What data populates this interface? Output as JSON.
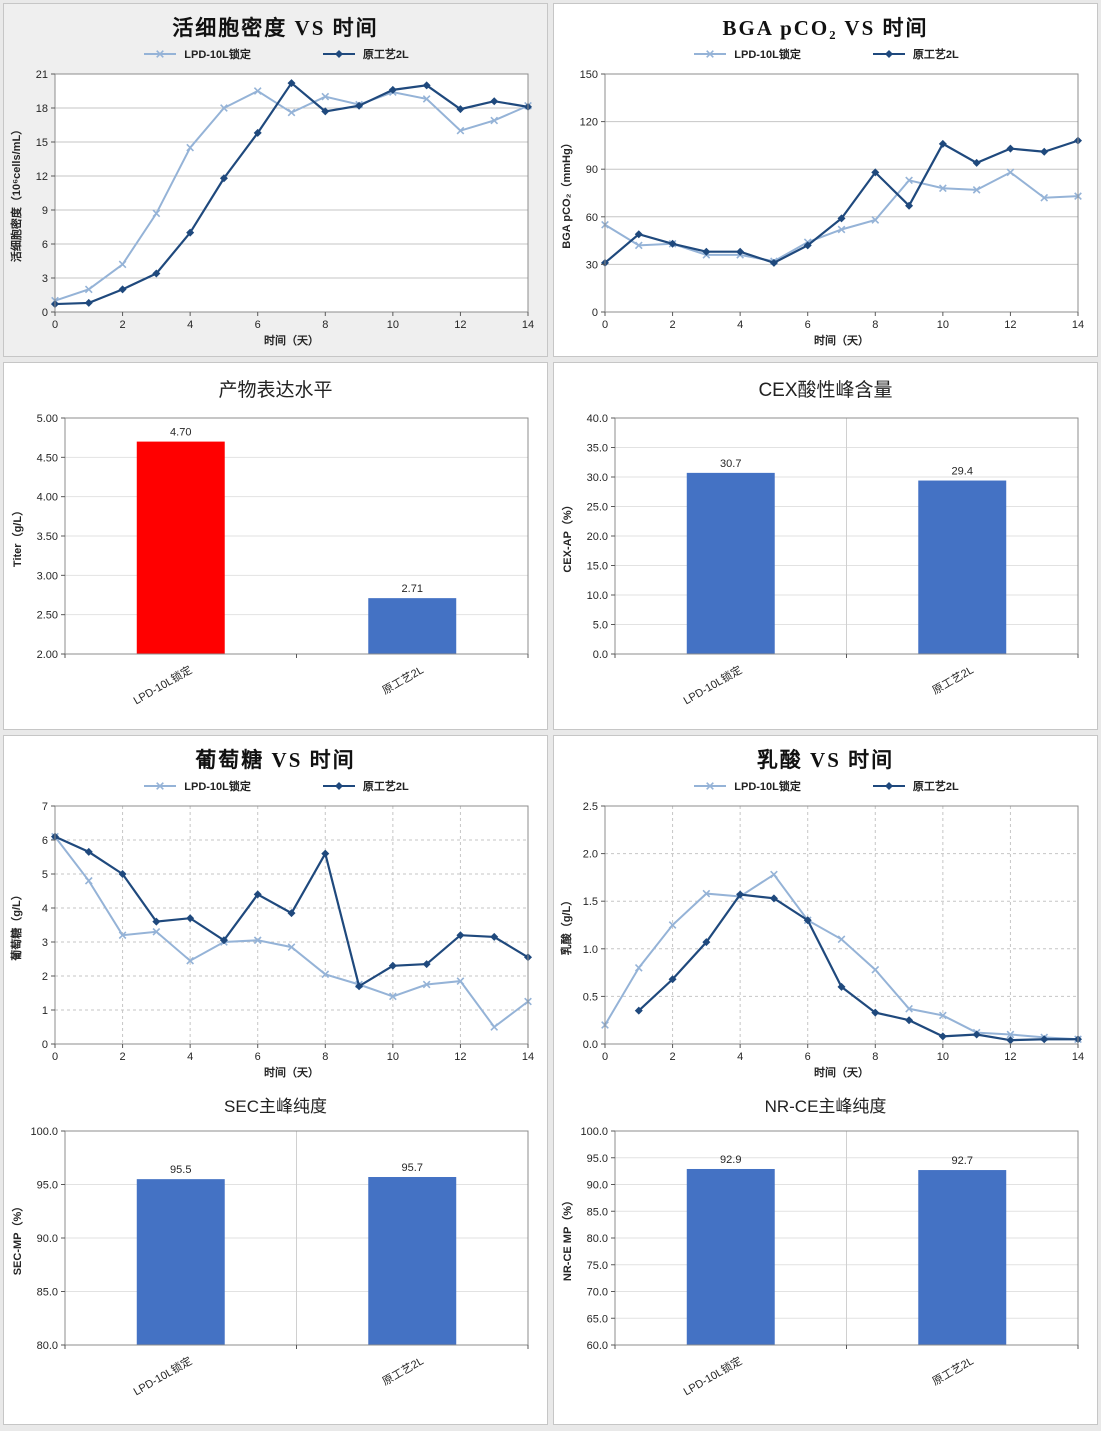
{
  "chart_data": [
    {
      "id": "vcd",
      "type": "line",
      "title": "活细胞密度 VS 时间",
      "xlabel": "时间（天）",
      "ylabel": "活细胞密度（10⁶cells/mL）",
      "xlim": [
        0,
        14
      ],
      "ylim": [
        0,
        21
      ],
      "xticks": [
        0,
        2,
        4,
        6,
        8,
        10,
        12,
        14
      ],
      "xtick_labels": [
        "0",
        "2",
        "4",
        "6",
        "8",
        "10",
        "12",
        "14"
      ],
      "yticks": [
        0,
        3,
        6,
        9,
        12,
        15,
        18,
        21
      ],
      "ytick_labels": [
        "0",
        "3",
        "6",
        "9",
        "12",
        "15",
        "18",
        "21"
      ],
      "grid": {
        "h": true,
        "v": false,
        "dash": false
      },
      "x": [
        0,
        1,
        2,
        3,
        4,
        5,
        6,
        7,
        8,
        9,
        10,
        11,
        12,
        13,
        14
      ],
      "series": [
        {
          "name": "LPD-10L锁定",
          "color": "#95b3d7",
          "marker": "x",
          "width": 2,
          "values": [
            1.0,
            2.0,
            4.2,
            8.7,
            14.5,
            18.0,
            19.5,
            17.6,
            19.0,
            18.3,
            19.4,
            18.8,
            16.0,
            16.9,
            18.2
          ]
        },
        {
          "name": "原工艺2L",
          "color": "#1f497d",
          "marker": "diamond",
          "width": 2.2,
          "values": [
            0.7,
            0.8,
            2.0,
            3.4,
            7.0,
            11.8,
            15.8,
            20.2,
            17.7,
            18.2,
            19.6,
            20.0,
            17.9,
            18.6,
            18.1
          ]
        }
      ]
    },
    {
      "id": "bga",
      "type": "line",
      "title": "BGA pCO₂ VS 时间",
      "xlabel": "时间（天）",
      "ylabel": "BGA pCO₂（mmHg）",
      "xlim": [
        0,
        14
      ],
      "ylim": [
        0,
        150
      ],
      "xticks": [
        0,
        2,
        4,
        6,
        8,
        10,
        12,
        14
      ],
      "xtick_labels": [
        "0",
        "2",
        "4",
        "6",
        "8",
        "10",
        "12",
        "14"
      ],
      "yticks": [
        0,
        30,
        60,
        90,
        120,
        150
      ],
      "ytick_labels": [
        "0",
        "30",
        "60",
        "90",
        "120",
        "150"
      ],
      "grid": {
        "h": true,
        "v": false,
        "dash": false
      },
      "x": [
        0,
        1,
        2,
        3,
        4,
        5,
        6,
        7,
        8,
        9,
        10,
        11,
        12,
        13,
        14
      ],
      "series": [
        {
          "name": "LPD-10L锁定",
          "color": "#95b3d7",
          "marker": "x",
          "width": 2,
          "values": [
            55,
            42,
            43,
            36,
            36,
            32,
            44,
            52,
            58,
            83,
            78,
            77,
            88,
            72,
            73
          ]
        },
        {
          "name": "原工艺2L",
          "color": "#1f497d",
          "marker": "diamond",
          "width": 2.2,
          "values": [
            31,
            49,
            43,
            38,
            38,
            31,
            42,
            59,
            88,
            67,
            106,
            94,
            103,
            101,
            108
          ]
        }
      ]
    },
    {
      "id": "titer",
      "type": "bar",
      "title": "产物表达水平",
      "ylabel": "Titer（g/L）",
      "ylim": [
        2.0,
        5.0
      ],
      "yticks": [
        2.0,
        2.5,
        3.0,
        3.5,
        4.0,
        4.5,
        5.0
      ],
      "ytick_labels": [
        "2.00",
        "2.50",
        "3.00",
        "3.50",
        "4.00",
        "4.50",
        "5.00"
      ],
      "categories": [
        "LPD-10L锁定",
        "原工艺2L"
      ],
      "values": [
        4.7,
        2.71
      ],
      "value_labels": [
        "4.70",
        "2.71"
      ],
      "bar_colors": [
        "#ff0000",
        "#4472c4"
      ],
      "center_vline": false
    },
    {
      "id": "cex",
      "type": "bar",
      "title": "CEX酸性峰含量",
      "ylabel": "CEX-AP（%）",
      "ylim": [
        0,
        40
      ],
      "yticks": [
        0,
        5,
        10,
        15,
        20,
        25,
        30,
        35,
        40
      ],
      "ytick_labels": [
        "0.0",
        "5.0",
        "10.0",
        "15.0",
        "20.0",
        "25.0",
        "30.0",
        "35.0",
        "40.0"
      ],
      "categories": [
        "LPD-10L锁定",
        "原工艺2L"
      ],
      "values": [
        30.7,
        29.4
      ],
      "value_labels": [
        "30.7",
        "29.4"
      ],
      "bar_colors": [
        "#4472c4",
        "#4472c4"
      ],
      "center_vline": true
    },
    {
      "id": "glucose",
      "type": "line",
      "title": "葡萄糖 VS 时间",
      "xlabel": "时间（天）",
      "ylabel": "葡萄糖（g/L）",
      "xlim": [
        0,
        14
      ],
      "ylim": [
        0,
        7
      ],
      "xticks": [
        0,
        2,
        4,
        6,
        8,
        10,
        12,
        14
      ],
      "xtick_labels": [
        "0",
        "2",
        "4",
        "6",
        "8",
        "10",
        "12",
        "14"
      ],
      "yticks": [
        0,
        1,
        2,
        3,
        4,
        5,
        6,
        7
      ],
      "ytick_labels": [
        "0",
        "1",
        "2",
        "3",
        "4",
        "5",
        "6",
        "7"
      ],
      "grid": {
        "h": true,
        "v": true,
        "dash": true
      },
      "x": [
        0,
        1,
        2,
        3,
        4,
        5,
        6,
        7,
        8,
        9,
        10,
        11,
        12,
        13,
        14
      ],
      "series": [
        {
          "name": "LPD-10L锁定",
          "color": "#95b3d7",
          "marker": "x",
          "width": 2,
          "values": [
            6.1,
            4.8,
            3.2,
            3.3,
            2.45,
            3.0,
            3.05,
            2.85,
            2.05,
            1.75,
            1.4,
            1.75,
            1.85,
            0.5,
            1.25
          ]
        },
        {
          "name": "原工艺2L",
          "color": "#1f497d",
          "marker": "diamond",
          "width": 2.2,
          "values": [
            6.1,
            5.65,
            5.0,
            3.6,
            3.7,
            3.05,
            4.4,
            3.85,
            5.6,
            1.7,
            2.3,
            2.35,
            3.2,
            3.15,
            2.55
          ]
        }
      ]
    },
    {
      "id": "lactate",
      "type": "line",
      "title": "乳酸 VS 时间",
      "xlabel": "时间（天）",
      "ylabel": "乳酸（g/L）",
      "xlim": [
        0,
        14
      ],
      "ylim": [
        0,
        2.5
      ],
      "xticks": [
        0,
        2,
        4,
        6,
        8,
        10,
        12,
        14
      ],
      "xtick_labels": [
        "0",
        "2",
        "4",
        "6",
        "8",
        "10",
        "12",
        "14"
      ],
      "yticks": [
        0,
        0.5,
        1.0,
        1.5,
        2.0,
        2.5
      ],
      "ytick_labels": [
        "0.0",
        "0.5",
        "1.0",
        "1.5",
        "2.0",
        "2.5"
      ],
      "grid": {
        "h": true,
        "v": true,
        "dash": true
      },
      "x": [
        0,
        1,
        2,
        3,
        4,
        5,
        6,
        7,
        8,
        9,
        10,
        11,
        12,
        13,
        14
      ],
      "series": [
        {
          "name": "LPD-10L锁定",
          "color": "#95b3d7",
          "marker": "x",
          "width": 2,
          "values": [
            0.2,
            0.8,
            1.25,
            1.58,
            1.55,
            1.78,
            1.3,
            1.1,
            0.78,
            0.37,
            0.3,
            0.12,
            0.1,
            0.07,
            0.05
          ]
        },
        {
          "name": "原工艺2L",
          "color": "#1f497d",
          "marker": "diamond",
          "width": 2.2,
          "values": [
            null,
            0.35,
            0.68,
            1.07,
            1.57,
            1.53,
            1.3,
            0.6,
            0.33,
            0.25,
            0.08,
            0.1,
            0.04,
            0.05,
            0.05
          ]
        }
      ]
    },
    {
      "id": "sec",
      "type": "bar",
      "title": "SEC主峰纯度",
      "ylabel": "SEC-MP（%）",
      "ylim": [
        80,
        100
      ],
      "yticks": [
        80,
        85,
        90,
        95,
        100
      ],
      "ytick_labels": [
        "80.0",
        "85.0",
        "90.0",
        "95.0",
        "100.0"
      ],
      "categories": [
        "LPD-10L锁定",
        "原工艺2L"
      ],
      "values": [
        95.5,
        95.7
      ],
      "value_labels": [
        "95.5",
        "95.7"
      ],
      "bar_colors": [
        "#4472c4",
        "#4472c4"
      ],
      "center_vline": true
    },
    {
      "id": "nrce",
      "type": "bar",
      "title": "NR-CE主峰纯度",
      "ylabel": "NR-CE MP（%）",
      "ylim": [
        60,
        100
      ],
      "yticks": [
        60,
        65,
        70,
        75,
        80,
        85,
        90,
        95,
        100
      ],
      "ytick_labels": [
        "60.0",
        "65.0",
        "70.0",
        "75.0",
        "80.0",
        "85.0",
        "90.0",
        "95.0",
        "100.0"
      ],
      "categories": [
        "LPD-10L锁定",
        "原工艺2L"
      ],
      "values": [
        92.9,
        92.7
      ],
      "value_labels": [
        "92.9",
        "92.7"
      ],
      "bar_colors": [
        "#4472c4",
        "#4472c4"
      ],
      "center_vline": true
    }
  ]
}
